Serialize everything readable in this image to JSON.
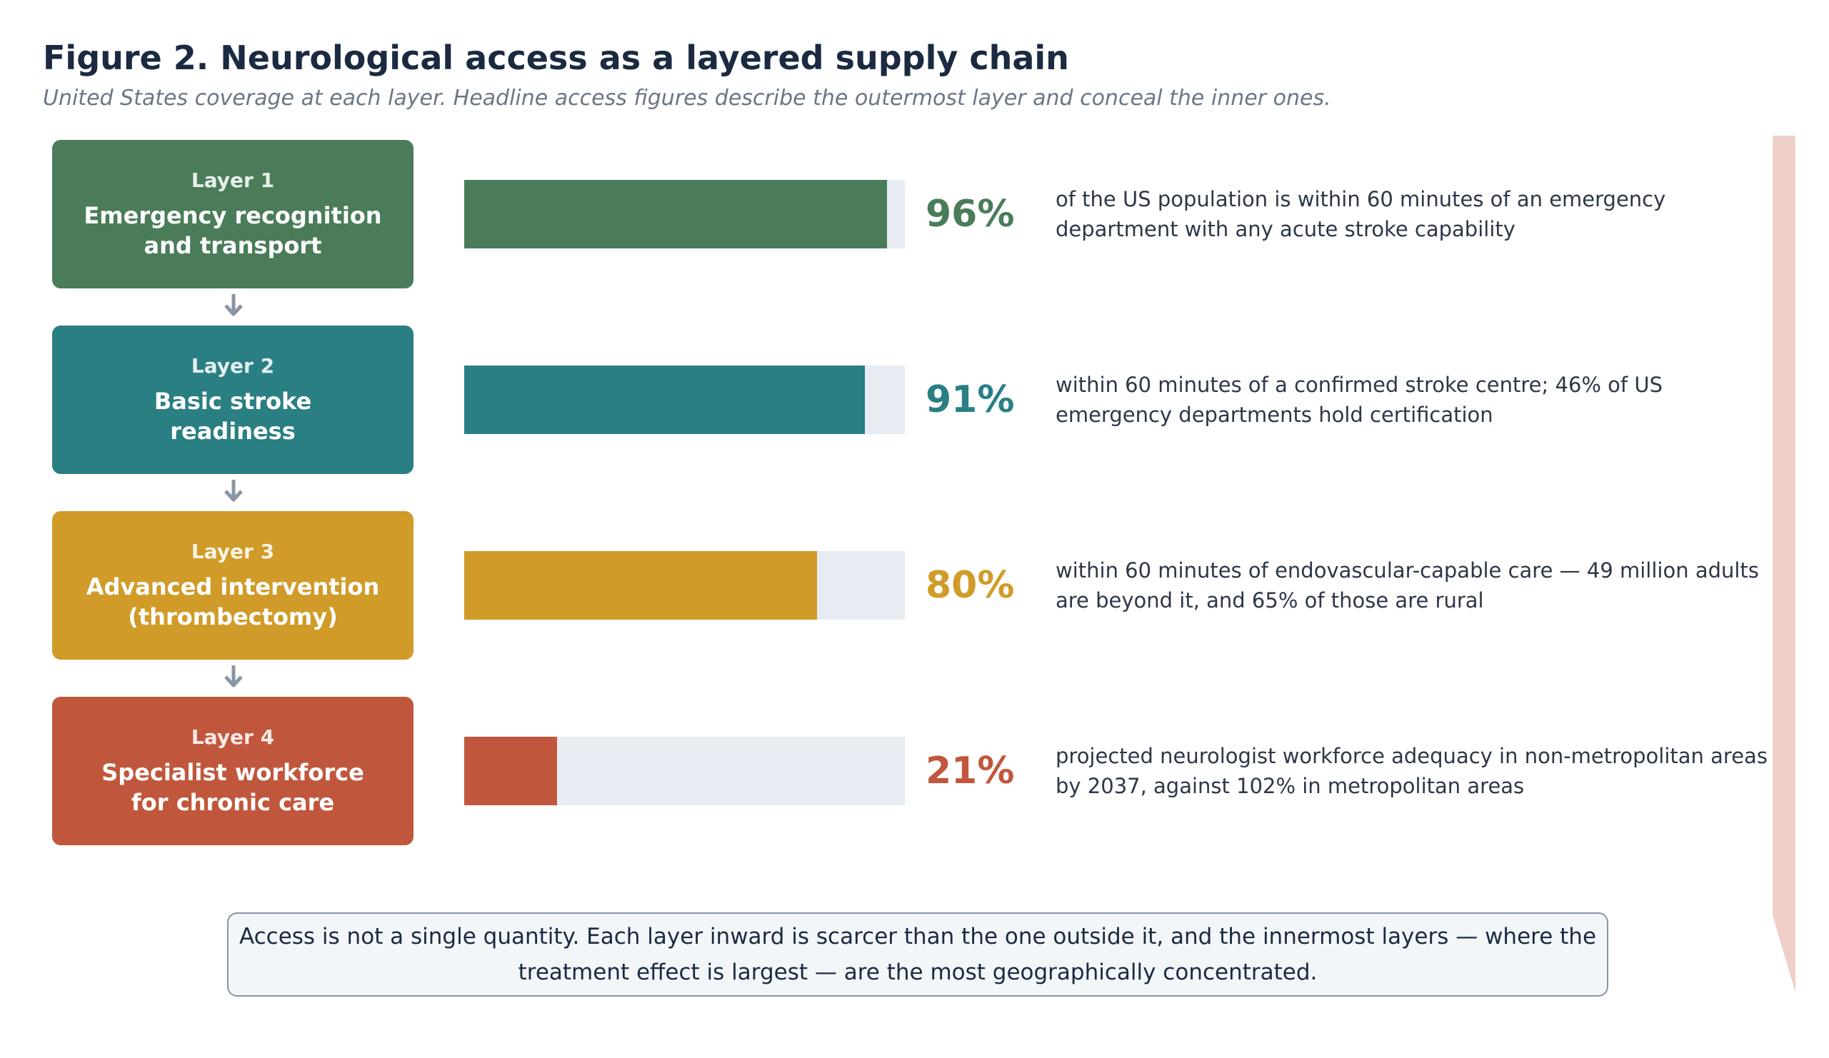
{
  "figure": {
    "title": "Figure 2.  Neurological access as a layered supply chain",
    "subtitle": "United States coverage at each layer. Headline access figures describe the outermost layer and conceal the inner ones."
  },
  "layers": [
    {
      "number": "Layer 1",
      "name": "Emergency recognition and transport",
      "pct_label": "96%",
      "desc": "of the US population is within 60 minutes of an emergency department with any acute stroke capability",
      "color": "#4a7c59"
    },
    {
      "number": "Layer 2",
      "name": "Basic stroke readiness",
      "pct_label": "91%",
      "desc": "within 60 minutes of a confirmed stroke centre; 46% of US emergency departments hold certification",
      "color": "#2a7f83"
    },
    {
      "number": "Layer 3",
      "name": "Advanced intervention (thrombectomy)",
      "pct_label": "80%",
      "desc": "within 60 minutes of endovascular-capable care — 49 million adults are beyond it, and 65% of those are rural",
      "color": "#d09b28"
    },
    {
      "number": "Layer 4",
      "name": "Specialist workforce for chronic care",
      "pct_label": "21%",
      "desc": "projected neurologist workforce adequacy in non-metropolitan areas by 2037, against 102% in metropolitan areas",
      "color": "#c0573c"
    }
  ],
  "chart_data": {
    "type": "bar",
    "orientation": "horizontal",
    "categories": [
      "Layer 1",
      "Layer 2",
      "Layer 3",
      "Layer 4"
    ],
    "values": [
      96,
      91,
      80,
      21
    ],
    "unit": "%",
    "xlim": [
      0,
      100
    ],
    "grid": false
  },
  "callout": {
    "text": "Access is not a single quantity. Each layer inward is scarcer than the one outside it, and the innermost layers — where the treatment effect is largest — are the most geographically concentrated."
  },
  "colors": {
    "track": "#e7ecf3",
    "arrow": "#8a95a5",
    "accent": "#eed0c8"
  }
}
